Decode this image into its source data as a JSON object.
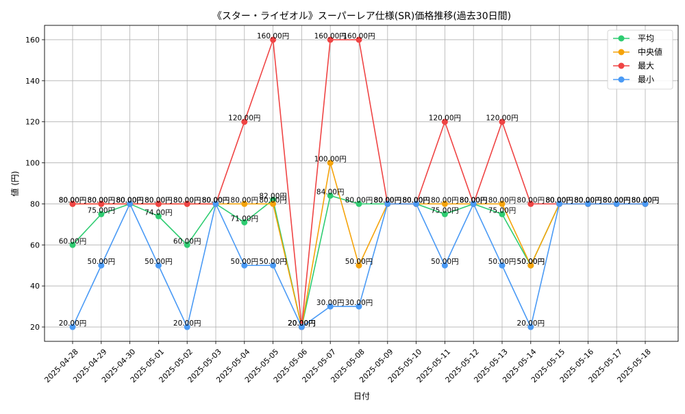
{
  "chart_data": {
    "type": "line",
    "title": "《スター・ライゼオル》スーパーレア仕様(SR)価格推移(過去30日間)",
    "xlabel": "日付",
    "ylabel": "値 (円)",
    "ylim": [
      13,
      167
    ],
    "yticks": [
      20,
      40,
      60,
      80,
      100,
      120,
      140,
      160
    ],
    "grid": true,
    "legend_position": "top-right",
    "label_suffix": "円",
    "categories": [
      "2025-04-28",
      "2025-04-29",
      "2025-04-30",
      "2025-05-01",
      "2025-05-02",
      "2025-05-03",
      "2025-05-04",
      "2025-05-05",
      "2025-05-06",
      "2025-05-07",
      "2025-05-08",
      "2025-05-09",
      "2025-05-10",
      "2025-05-11",
      "2025-05-12",
      "2025-05-13",
      "2025-05-14",
      "2025-05-15",
      "2025-05-16",
      "2025-05-17",
      "2025-05-18"
    ],
    "series": [
      {
        "name": "平均",
        "color": "#2ecc71",
        "values": [
          60,
          75,
          80,
          74,
          60,
          80,
          71,
          82,
          20,
          84,
          80,
          80,
          80,
          75,
          80,
          75,
          50,
          80,
          80,
          80,
          80
        ]
      },
      {
        "name": "中央値",
        "color": "#f5a30a",
        "values": [
          80,
          80,
          80,
          80,
          80,
          80,
          80,
          80,
          20,
          100,
          50,
          80,
          80,
          80,
          80,
          80,
          50,
          80,
          80,
          80,
          80
        ]
      },
      {
        "name": "最大",
        "color": "#ef4444",
        "values": [
          80,
          80,
          80,
          80,
          80,
          80,
          120,
          160,
          20,
          160,
          160,
          80,
          80,
          120,
          80,
          120,
          80,
          80,
          80,
          80,
          80
        ]
      },
      {
        "name": "最小",
        "color": "#4a9af5",
        "values": [
          20,
          50,
          80,
          50,
          20,
          80,
          50,
          50,
          20,
          30,
          30,
          80,
          80,
          50,
          80,
          50,
          20,
          80,
          80,
          80,
          80
        ]
      }
    ]
  }
}
